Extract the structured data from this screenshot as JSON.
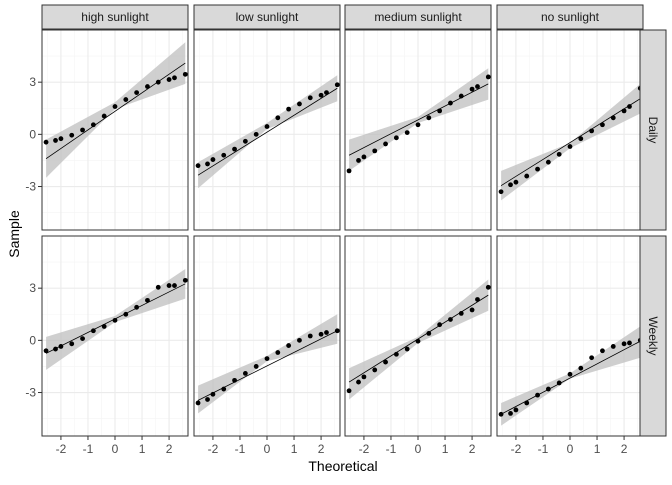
{
  "chart_data": {
    "type": "scatter",
    "subtype": "qq-plot-faceted",
    "xlabel": "Theoretical",
    "ylabel": "Sample",
    "xlim": [
      -2.7,
      2.7
    ],
    "ylim": [
      -5.5,
      6.0
    ],
    "x_ticks": [
      -2,
      -1,
      0,
      1,
      2
    ],
    "x_tick_labels": [
      "-2",
      "-1",
      "0",
      "1",
      "2"
    ],
    "y_ticks": [
      -3,
      0,
      3
    ],
    "y_tick_labels": [
      "-3",
      "0",
      "3"
    ],
    "grid": true,
    "columns": [
      "high sunlight",
      "low sunlight",
      "medium sunlight",
      "no sunlight"
    ],
    "rows": [
      "Daily",
      "Weekly"
    ],
    "colors": {
      "points": "#000000",
      "line": "#000000",
      "band": "#bfbfbf",
      "strip": "#d9d9d9",
      "strip_border": "#333333",
      "panel_border": "#333333",
      "grid_major": "#ebebeb",
      "grid_minor": "#f5f5f5"
    },
    "panels": [
      {
        "row": "Daily",
        "col": "high sunlight",
        "points": [
          [
            -2.55,
            -0.45
          ],
          [
            -2.2,
            -0.35
          ],
          [
            -2.0,
            -0.25
          ],
          [
            -1.6,
            -0.05
          ],
          [
            -1.2,
            0.25
          ],
          [
            -0.8,
            0.55
          ],
          [
            -0.4,
            1.05
          ],
          [
            0.0,
            1.6
          ],
          [
            0.4,
            2.0
          ],
          [
            0.8,
            2.4
          ],
          [
            1.2,
            2.75
          ],
          [
            1.6,
            3.0
          ],
          [
            2.0,
            3.15
          ],
          [
            2.2,
            3.25
          ],
          [
            2.6,
            3.45
          ]
        ],
        "line": [
          [
            -2.55,
            -1.4
          ],
          [
            2.6,
            4.1
          ]
        ],
        "band": [
          [
            -2.55,
            -2.5,
            -0.3
          ],
          [
            0,
            1.45,
            1.85
          ],
          [
            2.6,
            2.9,
            5.3
          ]
        ]
      },
      {
        "row": "Daily",
        "col": "low sunlight",
        "points": [
          [
            -2.55,
            -1.8
          ],
          [
            -2.2,
            -1.7
          ],
          [
            -2.0,
            -1.45
          ],
          [
            -1.6,
            -1.2
          ],
          [
            -1.2,
            -0.85
          ],
          [
            -0.8,
            -0.4
          ],
          [
            -0.4,
            0.0
          ],
          [
            0.0,
            0.45
          ],
          [
            0.4,
            0.95
          ],
          [
            0.8,
            1.45
          ],
          [
            1.2,
            1.75
          ],
          [
            1.6,
            2.1
          ],
          [
            2.0,
            2.25
          ],
          [
            2.2,
            2.4
          ],
          [
            2.6,
            2.85
          ]
        ],
        "line": [
          [
            -2.55,
            -2.35
          ],
          [
            2.6,
            2.65
          ]
        ],
        "band": [
          [
            -2.55,
            -3.1,
            -1.6
          ],
          [
            0,
            0.3,
            0.65
          ],
          [
            2.6,
            1.9,
            3.4
          ]
        ]
      },
      {
        "row": "Daily",
        "col": "medium sunlight",
        "points": [
          [
            -2.55,
            -2.1
          ],
          [
            -2.2,
            -1.5
          ],
          [
            -2.0,
            -1.3
          ],
          [
            -1.6,
            -0.95
          ],
          [
            -1.2,
            -0.55
          ],
          [
            -0.8,
            -0.2
          ],
          [
            -0.4,
            0.1
          ],
          [
            0.0,
            0.55
          ],
          [
            0.4,
            0.95
          ],
          [
            0.8,
            1.35
          ],
          [
            1.2,
            1.8
          ],
          [
            1.6,
            2.2
          ],
          [
            2.0,
            2.6
          ],
          [
            2.2,
            2.75
          ],
          [
            2.6,
            3.3
          ]
        ],
        "line": [
          [
            -2.55,
            -1.2
          ],
          [
            2.6,
            2.9
          ]
        ],
        "band": [
          [
            -2.55,
            -2.1,
            -0.3
          ],
          [
            0,
            0.65,
            1.0
          ],
          [
            2.6,
            2.0,
            3.8
          ]
        ]
      },
      {
        "row": "Daily",
        "col": "no sunlight",
        "points": [
          [
            -2.55,
            -3.3
          ],
          [
            -2.2,
            -2.9
          ],
          [
            -2.0,
            -2.75
          ],
          [
            -1.6,
            -2.4
          ],
          [
            -1.2,
            -2.0
          ],
          [
            -0.8,
            -1.6
          ],
          [
            -0.4,
            -1.15
          ],
          [
            0.0,
            -0.7
          ],
          [
            0.4,
            -0.25
          ],
          [
            0.8,
            0.2
          ],
          [
            1.2,
            0.55
          ],
          [
            1.6,
            0.95
          ],
          [
            2.0,
            1.35
          ],
          [
            2.2,
            1.6
          ],
          [
            2.6,
            2.65
          ]
        ],
        "line": [
          [
            -2.55,
            -2.95
          ],
          [
            2.6,
            2.05
          ]
        ],
        "band": [
          [
            -2.55,
            -3.8,
            -2.1
          ],
          [
            0,
            -0.8,
            -0.5
          ],
          [
            2.6,
            1.2,
            2.9
          ]
        ]
      },
      {
        "row": "Weekly",
        "col": "high sunlight",
        "points": [
          [
            -2.55,
            -0.6
          ],
          [
            -2.2,
            -0.5
          ],
          [
            -2.0,
            -0.35
          ],
          [
            -1.6,
            -0.2
          ],
          [
            -1.2,
            0.1
          ],
          [
            -0.8,
            0.55
          ],
          [
            -0.4,
            0.8
          ],
          [
            0.0,
            1.15
          ],
          [
            0.4,
            1.5
          ],
          [
            0.8,
            1.9
          ],
          [
            1.2,
            2.3
          ],
          [
            1.6,
            3.05
          ],
          [
            2.0,
            3.15
          ],
          [
            2.2,
            3.15
          ],
          [
            2.6,
            3.45
          ]
        ],
        "line": [
          [
            -2.55,
            -0.75
          ],
          [
            2.6,
            3.25
          ]
        ],
        "band": [
          [
            -2.55,
            -1.7,
            0.2
          ],
          [
            0,
            1.05,
            1.4
          ],
          [
            2.6,
            2.4,
            4.1
          ]
        ]
      },
      {
        "row": "Weekly",
        "col": "low sunlight",
        "points": [
          [
            -2.55,
            -3.6
          ],
          [
            -2.2,
            -3.4
          ],
          [
            -2.0,
            -3.1
          ],
          [
            -1.6,
            -2.8
          ],
          [
            -1.2,
            -2.3
          ],
          [
            -0.8,
            -1.9
          ],
          [
            -0.4,
            -1.5
          ],
          [
            0.0,
            -1.05
          ],
          [
            0.4,
            -0.7
          ],
          [
            0.8,
            -0.3
          ],
          [
            1.2,
            0.0
          ],
          [
            1.6,
            0.25
          ],
          [
            2.0,
            0.35
          ],
          [
            2.2,
            0.45
          ],
          [
            2.6,
            0.55
          ]
        ],
        "line": [
          [
            -2.55,
            -3.45
          ],
          [
            2.6,
            0.55
          ]
        ],
        "band": [
          [
            -2.55,
            -4.2,
            -2.6
          ],
          [
            0,
            -1.2,
            -0.9
          ],
          [
            2.6,
            -0.2,
            1.5
          ]
        ]
      },
      {
        "row": "Weekly",
        "col": "medium sunlight",
        "points": [
          [
            -2.55,
            -2.9
          ],
          [
            -2.2,
            -2.4
          ],
          [
            -2.0,
            -2.1
          ],
          [
            -1.6,
            -1.7
          ],
          [
            -1.2,
            -1.25
          ],
          [
            -0.8,
            -0.8
          ],
          [
            -0.4,
            -0.5
          ],
          [
            0.0,
            -0.05
          ],
          [
            0.4,
            0.4
          ],
          [
            0.8,
            0.9
          ],
          [
            1.2,
            1.2
          ],
          [
            1.6,
            1.55
          ],
          [
            2.0,
            1.75
          ],
          [
            2.2,
            2.35
          ],
          [
            2.6,
            3.05
          ]
        ],
        "line": [
          [
            -2.55,
            -2.4
          ],
          [
            2.6,
            2.6
          ]
        ],
        "band": [
          [
            -2.55,
            -3.4,
            -1.6
          ],
          [
            0,
            -0.15,
            0.2
          ],
          [
            2.6,
            1.7,
            3.5
          ]
        ]
      },
      {
        "row": "Weekly",
        "col": "no sunlight",
        "points": [
          [
            -2.55,
            -4.25
          ],
          [
            -2.2,
            -4.2
          ],
          [
            -2.0,
            -4.0
          ],
          [
            -1.6,
            -3.6
          ],
          [
            -1.2,
            -3.15
          ],
          [
            -0.8,
            -2.8
          ],
          [
            -0.4,
            -2.45
          ],
          [
            0.0,
            -1.95
          ],
          [
            0.4,
            -1.6
          ],
          [
            0.8,
            -1.0
          ],
          [
            1.2,
            -0.6
          ],
          [
            1.6,
            -0.35
          ],
          [
            2.0,
            -0.2
          ],
          [
            2.2,
            -0.15
          ],
          [
            2.6,
            0.0
          ]
        ],
        "line": [
          [
            -2.55,
            -4.25
          ],
          [
            2.6,
            -0.05
          ]
        ],
        "band": [
          [
            -2.55,
            -4.9,
            -3.6
          ],
          [
            0,
            -2.2,
            -1.9
          ],
          [
            2.6,
            -1.0,
            0.8
          ]
        ]
      }
    ]
  }
}
